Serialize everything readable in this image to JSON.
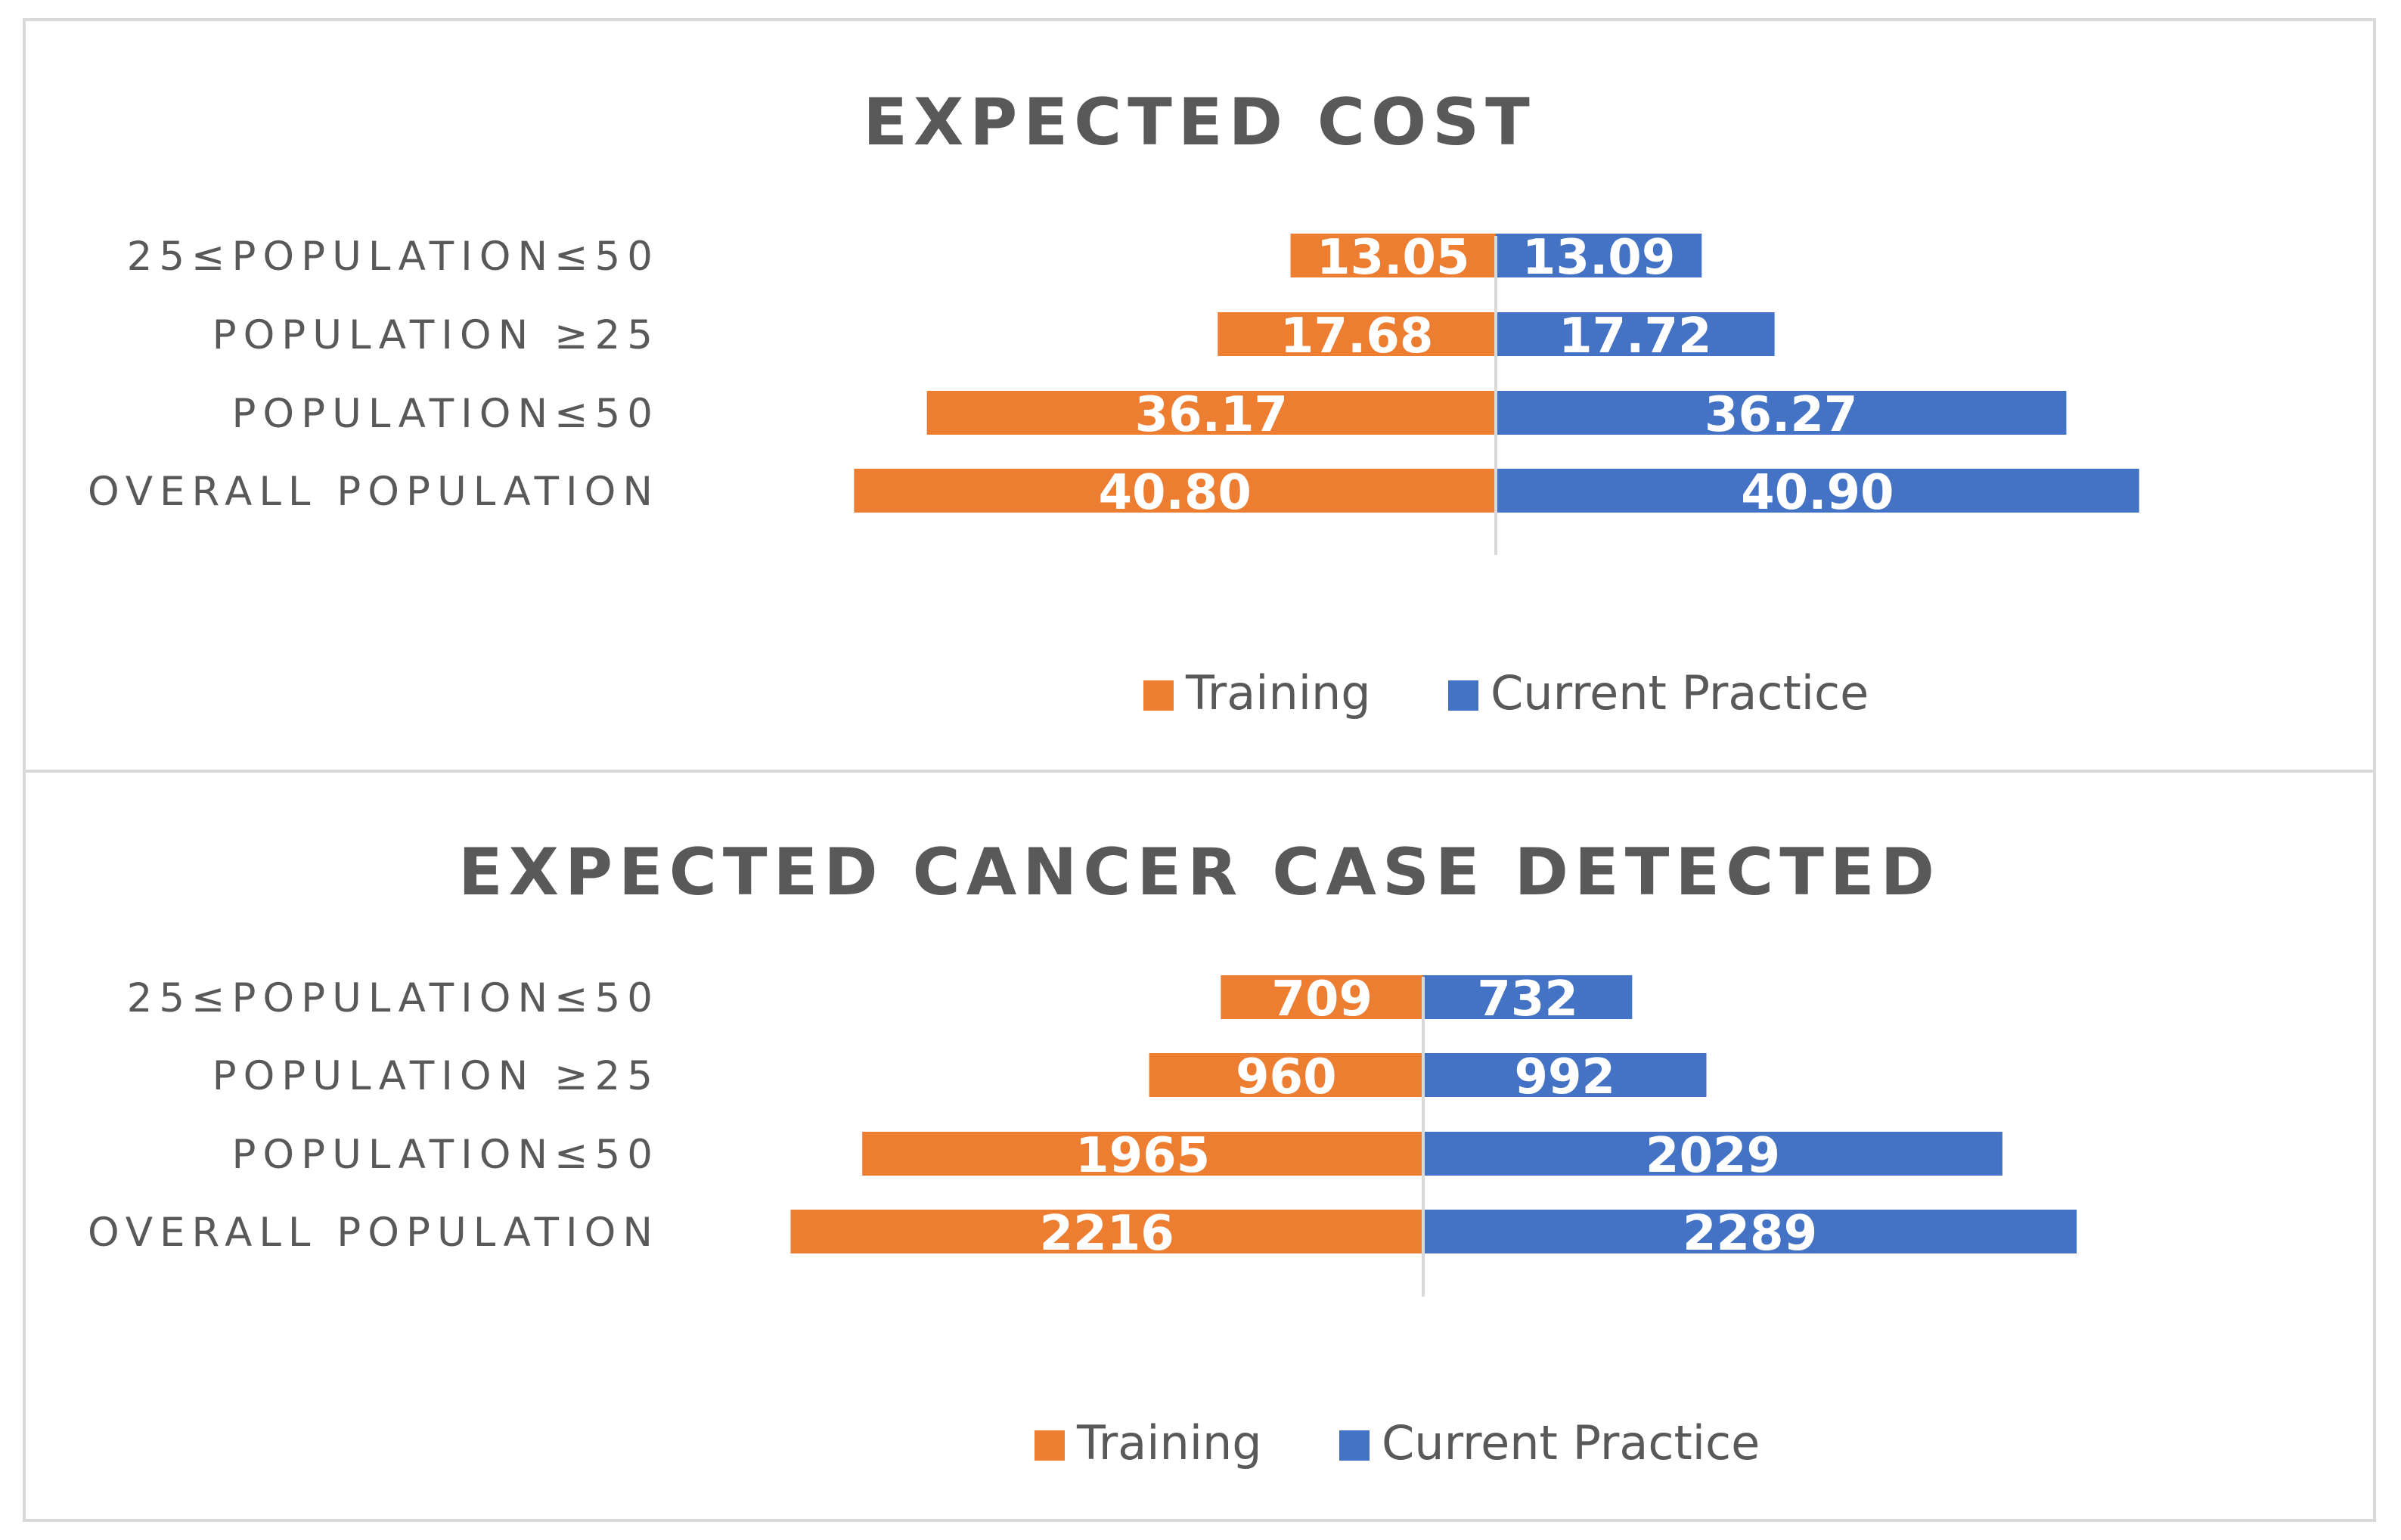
{
  "chart_data": [
    {
      "type": "bar",
      "orientation": "horizontal-diverging",
      "title": "EXPECTED COST",
      "categories": [
        "25≤POPULATION≤50",
        "POPULATION ≥25",
        "POPULATION≤50",
        "OVERALL POPULATION"
      ],
      "series": [
        {
          "name": "Training",
          "color": "#ED7D31",
          "values": [
            13.05,
            17.68,
            36.17,
            40.8
          ],
          "labels": [
            "13.05",
            "17.68",
            "36.17",
            "40.80"
          ]
        },
        {
          "name": "Current Practice",
          "color": "#4472C4",
          "values": [
            13.09,
            17.72,
            36.27,
            40.9
          ],
          "labels": [
            "13.09",
            "17.72",
            "36.27",
            "40.90"
          ]
        }
      ],
      "legend_position": "bottom",
      "grid": false
    },
    {
      "type": "bar",
      "orientation": "horizontal-diverging",
      "title": "EXPECTED CANCER CASE DETECTED",
      "categories": [
        "25≤POPULATION≤50",
        "POPULATION ≥25",
        "POPULATION≤50",
        "OVERALL POPULATION"
      ],
      "series": [
        {
          "name": "Training",
          "color": "#ED7D31",
          "values": [
            709,
            960,
            1965,
            2216
          ],
          "labels": [
            "709",
            "960",
            "1965",
            "2216"
          ]
        },
        {
          "name": "Current Practice",
          "color": "#4472C4",
          "values": [
            732,
            992,
            2029,
            2289
          ],
          "labels": [
            "732",
            "992",
            "2029",
            "2289"
          ]
        }
      ],
      "legend_position": "bottom",
      "grid": false
    }
  ]
}
